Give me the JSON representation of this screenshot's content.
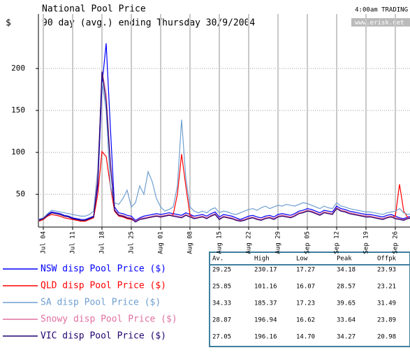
{
  "chart_data": {
    "type": "line",
    "title": "National Pool Price",
    "subtitle": "90 day (avg.) ending Thursday 30/9/2004",
    "y_label": "$",
    "timestamp": "4:00am TRADING",
    "source": "www.erisk.net",
    "categories": [
      null,
      "Jul 04",
      null,
      null,
      null,
      null,
      null,
      null,
      "Jul 11",
      null,
      null,
      null,
      null,
      null,
      null,
      "Jul 18",
      null,
      null,
      null,
      null,
      null,
      null,
      "Jul 25",
      null,
      null,
      null,
      null,
      null,
      null,
      "Aug 01",
      null,
      null,
      null,
      null,
      null,
      null,
      "Aug 08",
      null,
      null,
      null,
      null,
      null,
      null,
      "Aug 15",
      null,
      null,
      null,
      null,
      null,
      null,
      "Aug 22",
      null,
      null,
      null,
      null,
      null,
      null,
      "Aug 29",
      null,
      null,
      null,
      null,
      null,
      null,
      "Sep 05",
      null,
      null,
      null,
      null,
      null,
      null,
      "Sep 12",
      null,
      null,
      null,
      null,
      null,
      null,
      "Sep 19",
      null,
      null,
      null,
      null,
      null,
      null,
      "Sep 26",
      null,
      null,
      null,
      null
    ],
    "ylim": [
      11,
      265
    ],
    "yticks": [
      50,
      100,
      150,
      200
    ],
    "grid": true,
    "series": [
      {
        "name": "NSW disp Pool Price ($)",
        "color": "#0000ff",
        "values": [
          20,
          22,
          26,
          29,
          28,
          27,
          25,
          24,
          22,
          21,
          20,
          20,
          22,
          24,
          60,
          180,
          230,
          130,
          35,
          28,
          27,
          25,
          24,
          19,
          22,
          24,
          25,
          26,
          27,
          26,
          27,
          28,
          27,
          26,
          25,
          28,
          26,
          24,
          25,
          26,
          24,
          27,
          29,
          23,
          26,
          25,
          24,
          22,
          20,
          22,
          24,
          25,
          23,
          22,
          24,
          25,
          23,
          26,
          27,
          26,
          25,
          27,
          30,
          31,
          33,
          32,
          30,
          28,
          31,
          30,
          29,
          36,
          33,
          32,
          30,
          29,
          28,
          27,
          26,
          26,
          25,
          24,
          23,
          25,
          26,
          24,
          22,
          21,
          23,
          24
        ]
      },
      {
        "name": "QLD disp Pool Price ($)",
        "color": "#ff0000",
        "values": [
          18,
          20,
          24,
          26,
          25,
          24,
          22,
          21,
          20,
          19,
          18,
          18,
          20,
          22,
          50,
          101,
          95,
          60,
          30,
          24,
          23,
          21,
          20,
          18,
          20,
          21,
          22,
          23,
          24,
          23,
          24,
          25,
          26,
          50,
          98,
          60,
          25,
          22,
          23,
          24,
          22,
          24,
          26,
          21,
          23,
          22,
          21,
          20,
          19,
          20,
          22,
          22,
          21,
          20,
          22,
          23,
          21,
          24,
          25,
          24,
          23,
          25,
          28,
          29,
          31,
          30,
          28,
          26,
          29,
          28,
          27,
          34,
          31,
          30,
          28,
          27,
          26,
          25,
          24,
          24,
          23,
          22,
          21,
          22,
          23,
          24,
          62,
          30,
          22,
          23
        ]
      },
      {
        "name": "SA disp Pool Price ($)",
        "color": "#6f9fd0",
        "values": [
          19,
          22,
          27,
          31,
          30,
          29,
          28,
          27,
          26,
          25,
          24,
          24,
          26,
          30,
          80,
          185,
          150,
          60,
          40,
          38,
          45,
          55,
          35,
          40,
          60,
          50,
          77,
          65,
          45,
          35,
          30,
          32,
          35,
          60,
          139,
          70,
          35,
          30,
          28,
          30,
          28,
          32,
          34,
          28,
          30,
          29,
          27,
          26,
          28,
          30,
          32,
          33,
          31,
          34,
          36,
          33,
          35,
          37,
          36,
          38,
          37,
          36,
          38,
          40,
          39,
          37,
          35,
          33,
          36,
          34,
          33,
          40,
          36,
          35,
          33,
          32,
          31,
          30,
          29,
          29,
          28,
          27,
          26,
          28,
          29,
          30,
          33,
          28,
          26,
          27
        ]
      },
      {
        "name": "Snowy disp Pool Price ($)",
        "color": "#e070a0",
        "values": [
          19,
          21,
          25,
          28,
          27,
          26,
          24,
          23,
          21,
          20,
          19,
          19,
          21,
          23,
          70,
          197,
          170,
          90,
          32,
          26,
          25,
          23,
          22,
          18,
          21,
          22,
          23,
          24,
          25,
          24,
          25,
          26,
          25,
          24,
          23,
          26,
          24,
          22,
          23,
          24,
          22,
          25,
          27,
          21,
          24,
          23,
          22,
          20,
          19,
          20,
          22,
          23,
          21,
          20,
          22,
          23,
          21,
          24,
          25,
          24,
          23,
          25,
          28,
          29,
          31,
          30,
          28,
          26,
          29,
          28,
          27,
          34,
          31,
          30,
          28,
          27,
          26,
          25,
          24,
          24,
          23,
          22,
          21,
          23,
          24,
          22,
          21,
          20,
          22,
          23
        ]
      },
      {
        "name": "VIC disp Pool Price ($)",
        "color": "#200070",
        "values": [
          19,
          21,
          25,
          28,
          27,
          26,
          24,
          23,
          21,
          20,
          19,
          19,
          21,
          23,
          65,
          196,
          160,
          85,
          31,
          25,
          24,
          22,
          21,
          17,
          20,
          21,
          22,
          23,
          24,
          23,
          24,
          25,
          24,
          23,
          22,
          25,
          23,
          21,
          22,
          23,
          21,
          24,
          26,
          20,
          23,
          22,
          21,
          19,
          18,
          19,
          21,
          22,
          20,
          19,
          21,
          22,
          20,
          23,
          24,
          23,
          22,
          24,
          27,
          28,
          30,
          29,
          27,
          25,
          28,
          27,
          26,
          33,
          30,
          29,
          27,
          26,
          25,
          24,
          23,
          23,
          22,
          21,
          20,
          22,
          23,
          21,
          20,
          19,
          21,
          22
        ]
      }
    ]
  },
  "table": {
    "columns": [
      "Av.",
      "High",
      "Low",
      "Peak",
      "Offpk"
    ],
    "rows": [
      [
        "29.25",
        "230.17",
        "17.27",
        "34.18",
        "23.93"
      ],
      [
        "25.85",
        "101.16",
        "16.07",
        "28.57",
        "23.21"
      ],
      [
        "34.33",
        "185.37",
        "17.23",
        "39.65",
        "31.49"
      ],
      [
        "28.87",
        "196.94",
        "16.62",
        "33.64",
        "23.89"
      ],
      [
        "27.05",
        "196.16",
        "14.70",
        "34.27",
        "20.98"
      ]
    ]
  }
}
